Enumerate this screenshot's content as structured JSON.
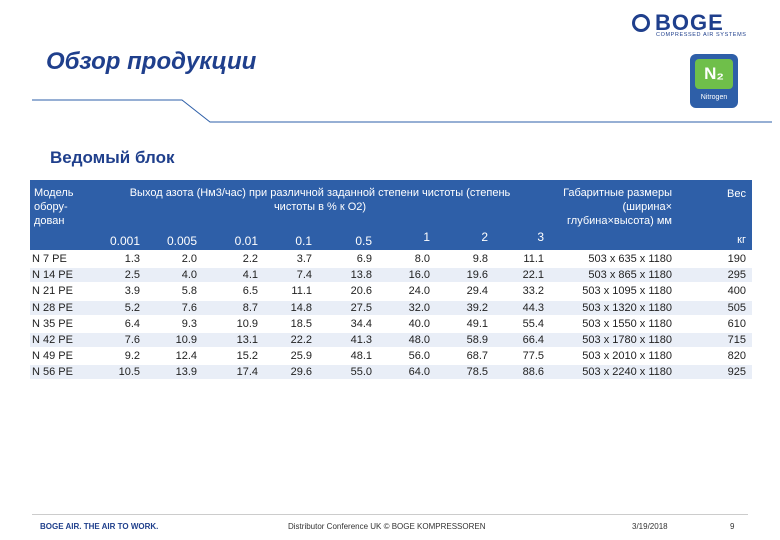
{
  "logo": {
    "name": "BOGE",
    "tagline": "COMPRESSED AIR SYSTEMS"
  },
  "badge": {
    "symbol": "N₂",
    "label": "Nitrogen",
    "color": "#6fbf4a"
  },
  "title": "Обзор продукции",
  "subtitle": "Ведомый блок",
  "table": {
    "model_header": "Модель обору-дован",
    "flow_header": "Выход азота (Нм3/час) при различной заданной степени чистоты (степень чистоты в % к O2)",
    "dims_header": "Габаритные размеры (ширина× глубина×высота) мм",
    "weight_header": "Вес",
    "weight_unit": "кг",
    "purity_levels": [
      "0.001",
      "0.005",
      "0.01",
      "0.1",
      "0.5",
      "1",
      "2",
      "3"
    ],
    "rows": [
      {
        "model": "N 7 PE",
        "values": [
          "1.3",
          "2.0",
          "2.2",
          "3.7",
          "6.9",
          "8.0",
          "9.8",
          "11.1"
        ],
        "dims": "503 x  635 x 1180",
        "weight": "190"
      },
      {
        "model": "N 14 PE",
        "values": [
          "2.5",
          "4.0",
          "4.1",
          "7.4",
          "13.8",
          "16.0",
          "19.6",
          "22.1"
        ],
        "dims": "503 x  865 x 1180",
        "weight": "295"
      },
      {
        "model": "N 21 PE",
        "values": [
          "3.9",
          "5.8",
          "6.5",
          "11.1",
          "20.6",
          "24.0",
          "29.4",
          "33.2"
        ],
        "dims": "503 x 1095 x 1180",
        "weight": "400"
      },
      {
        "model": "N 28 PE",
        "values": [
          "5.2",
          "7.6",
          "8.7",
          "14.8",
          "27.5",
          "32.0",
          "39.2",
          "44.3"
        ],
        "dims": "503 x 1320 x 1180",
        "weight": "505"
      },
      {
        "model": "N 35 PE",
        "values": [
          "6.4",
          "9.3",
          "10.9",
          "18.5",
          "34.4",
          "40.0",
          "49.1",
          "55.4"
        ],
        "dims": "503 x 1550 x 1180",
        "weight": "610"
      },
      {
        "model": "N 42 PE",
        "values": [
          "7.6",
          "10.9",
          "13.1",
          "22.2",
          "41.3",
          "48.0",
          "58.9",
          "66.4"
        ],
        "dims": "503 x 1780 x 1180",
        "weight": "715"
      },
      {
        "model": "N 49 PE",
        "values": [
          "9.2",
          "12.4",
          "15.2",
          "25.9",
          "48.1",
          "56.0",
          "68.7",
          "77.5"
        ],
        "dims": "503 x 2010 x 1180",
        "weight": "820"
      },
      {
        "model": "N 56 PE",
        "values": [
          "10.5",
          "13.9",
          "17.4",
          "29.6",
          "55.0",
          "64.0",
          "78.5",
          "88.6"
        ],
        "dims": "503 x 2240 x 1180",
        "weight": "925"
      }
    ]
  },
  "footer": {
    "slogan": "BOGE AIR. THE AIR TO WORK.",
    "event": "Distributor Conference UK © BOGE KOMPRESSOREN",
    "date": "3/19/2018",
    "page": "9"
  },
  "colors": {
    "header_bg": "#2e5fa8",
    "row_alt": "#e9eef7",
    "title": "#1f3f8c"
  }
}
